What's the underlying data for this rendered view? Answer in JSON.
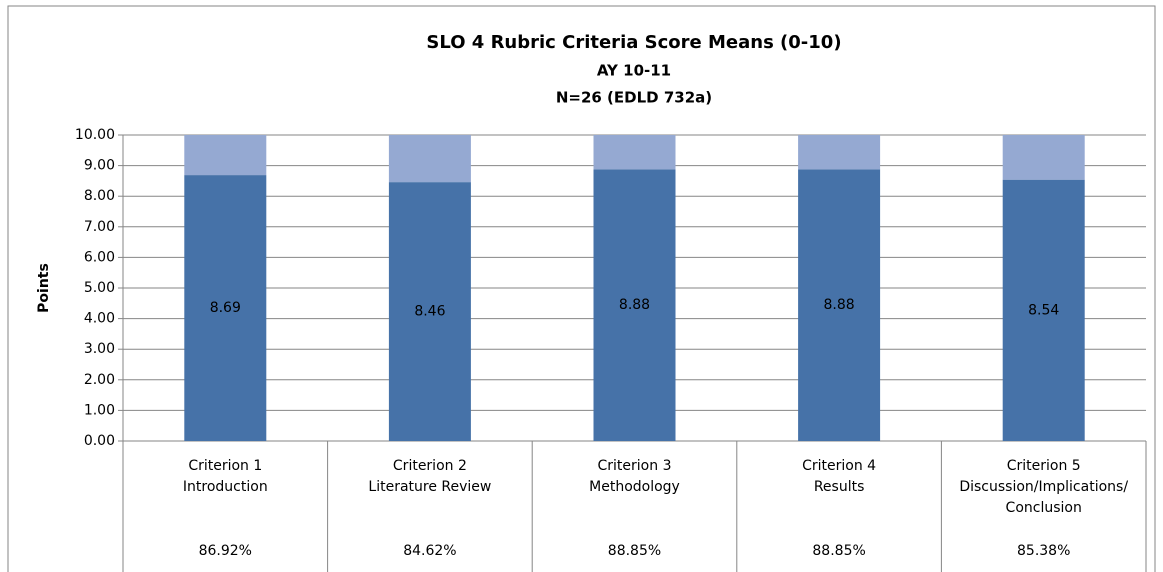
{
  "chart_data": {
    "type": "stacked_bar",
    "title": "SLO 4 Rubric Criteria Score Means (0-10)",
    "subtitle": [
      "AY 10-11",
      "N=26 (EDLD 732a)"
    ],
    "y_label": "Points",
    "categories": [
      [
        "Criterion 1",
        "Introduction"
      ],
      [
        "Criterion 2",
        "Literature Review"
      ],
      [
        "Criterion 3",
        "Methodology"
      ],
      [
        "Criterion 4",
        "Results"
      ],
      [
        "Criterion 5",
        "Discussion/Implications/",
        "Conclusion"
      ]
    ],
    "series": [
      {
        "color": "#4672a8",
        "values": [
          8.69,
          8.46,
          8.88,
          8.88,
          8.54
        ],
        "show_labels": true
      },
      {
        "color": "#95a9d2",
        "values": [
          1.31,
          1.54,
          1.12,
          1.12,
          1.46
        ],
        "show_labels": false
      }
    ],
    "table_row": [
      "86.92%",
      "84.62%",
      "88.85%",
      "88.85%",
      "85.38%"
    ],
    "ylim": [
      0,
      10
    ],
    "yticks": [
      {
        "value": 0,
        "label": "0.00"
      },
      {
        "value": 1,
        "label": "1.00"
      },
      {
        "value": 2,
        "label": "2.00"
      },
      {
        "value": 3,
        "label": "3.00"
      },
      {
        "value": 4,
        "label": "4.00"
      },
      {
        "value": 5,
        "label": "5.00"
      },
      {
        "value": 6,
        "label": "6.00"
      },
      {
        "value": 7,
        "label": "7.00"
      },
      {
        "value": 8,
        "label": "8.00"
      },
      {
        "value": 9,
        "label": "9.00"
      },
      {
        "value": 10,
        "label": "10.00"
      }
    ],
    "grid": true
  }
}
